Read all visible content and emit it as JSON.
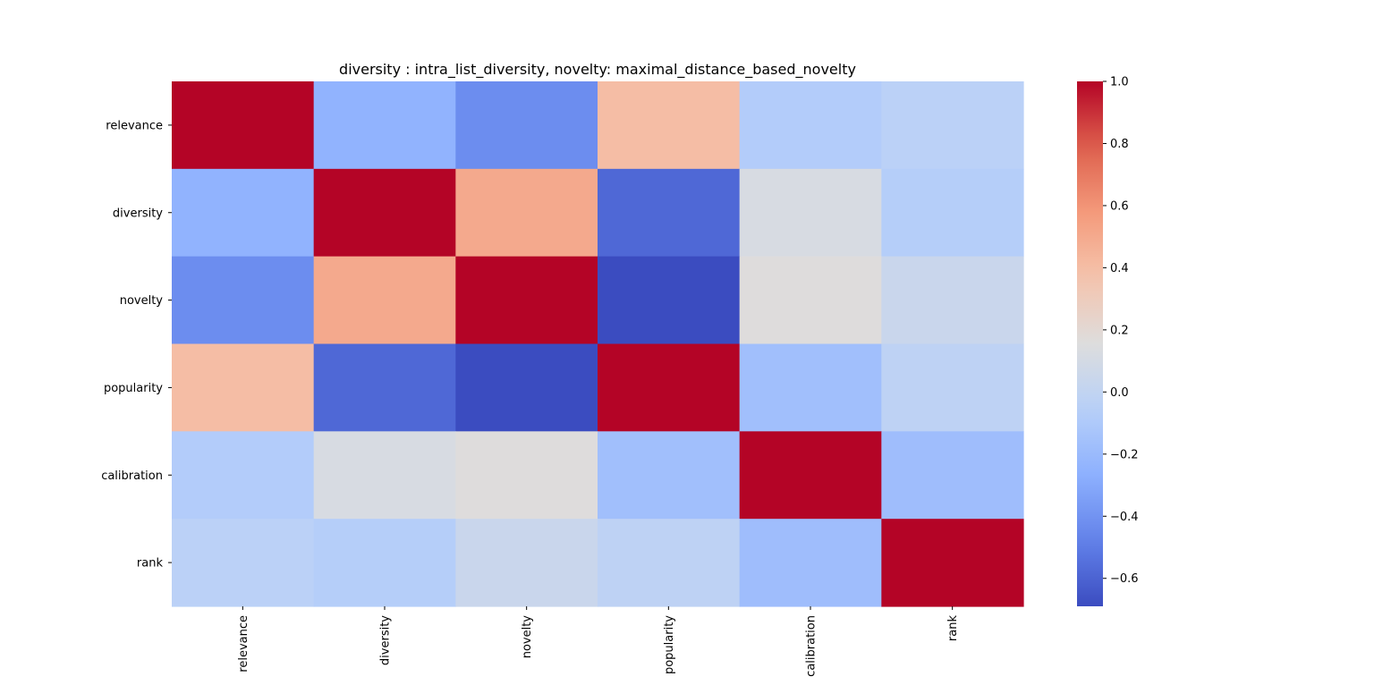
{
  "chart_data": {
    "type": "heatmap",
    "title": "diversity : intra_list_diversity, novelty: maximal_distance_based_novelty",
    "row_labels": [
      "relevance",
      "diversity",
      "novelty",
      "popularity",
      "calibration",
      "rank"
    ],
    "col_labels": [
      "relevance",
      "diversity",
      "novelty",
      "popularity",
      "calibration",
      "rank"
    ],
    "values": [
      [
        1.0,
        -0.25,
        -0.43,
        0.4,
        -0.08,
        -0.04
      ],
      [
        -0.25,
        1.0,
        0.5,
        -0.58,
        0.12,
        -0.07
      ],
      [
        -0.43,
        0.5,
        1.0,
        -0.69,
        0.16,
        0.04
      ],
      [
        0.4,
        -0.58,
        -0.69,
        1.0,
        -0.17,
        -0.02
      ],
      [
        -0.08,
        0.12,
        0.16,
        -0.17,
        1.0,
        -0.18
      ],
      [
        -0.04,
        -0.07,
        0.04,
        -0.02,
        -0.18,
        1.0
      ]
    ],
    "colormap": "coolwarm",
    "vmin": -0.69,
    "vmax": 1.0,
    "colorbar_ticks": [
      "1.0",
      "0.8",
      "0.6",
      "0.4",
      "0.2",
      "0.0",
      "−0.2",
      "−0.4",
      "−0.6"
    ],
    "colorbar_tick_values": [
      1.0,
      0.8,
      0.6,
      0.4,
      0.2,
      0.0,
      -0.2,
      -0.4,
      -0.6
    ],
    "grid": false,
    "legend": "colorbar-right"
  }
}
